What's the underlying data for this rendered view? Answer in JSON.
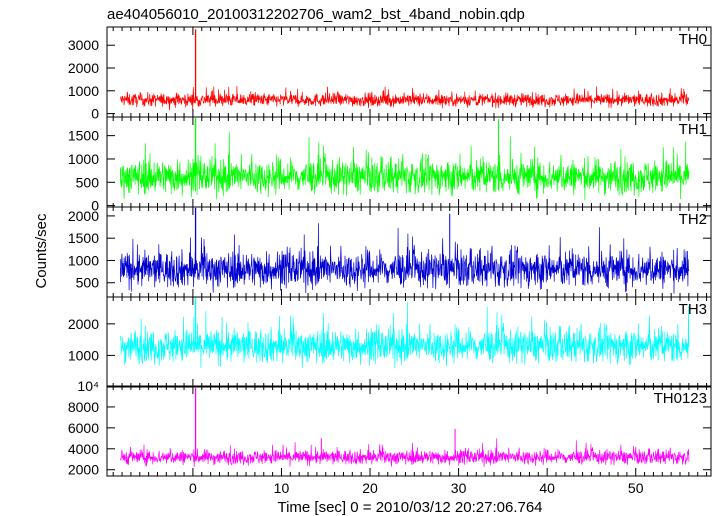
{
  "title": "ae404056010_20100312202706_wam2_bst_4band_nobin.qdp",
  "ylabel": "Counts/sec",
  "xlabel": "Time [sec] 0 = 2010/03/12 20:27:06.764",
  "chart_data": {
    "type": "line",
    "title": "ae404056010_20100312202706_wam2_bst_4band_nobin.qdp",
    "xlabel": "Time [sec] 0 = 2010/03/12 20:27:06.764",
    "ylabel": "Counts/sec",
    "xlim": [
      -9.7,
      58.5
    ],
    "x_data_range": [
      -8.2,
      56.0
    ],
    "xticks": [
      0,
      10,
      20,
      30,
      40,
      50
    ],
    "grid": false,
    "panels": [
      {
        "name": "TH0",
        "color": "#ff0000",
        "ylim": [
          -150,
          3800
        ],
        "yticks": [
          0,
          1000,
          2000,
          3000
        ],
        "ytick_labels": [
          "0",
          "1000",
          "2000",
          "3000"
        ],
        "baseline": 600,
        "noise": 260,
        "spike_time": 0.3,
        "spike_value": 3700,
        "extra_spikes": []
      },
      {
        "name": "TH1",
        "color": "#00ff00",
        "ylim": [
          -30,
          1900
        ],
        "yticks": [
          0,
          500,
          1000,
          1500
        ],
        "ytick_labels": [
          "0",
          "500",
          "1000",
          "1500"
        ],
        "baseline": 620,
        "noise": 330,
        "spike_time": 0.3,
        "spike_value": 1880,
        "extra_spikes": [
          [
            34.5,
            1850
          ]
        ]
      },
      {
        "name": "TH2",
        "color": "#0000d0",
        "ylim": [
          180,
          2200
        ],
        "yticks": [
          500,
          1000,
          1500,
          2000
        ],
        "ytick_labels": [
          "500",
          "1000",
          "1500",
          "2000"
        ],
        "baseline": 800,
        "noise": 360,
        "spike_time": 0.3,
        "spike_value": 2180,
        "extra_spikes": [
          [
            29.0,
            2050
          ]
        ]
      },
      {
        "name": "TH3",
        "color": "#00ffff",
        "ylim": [
          0,
          2850
        ],
        "yticks": [
          1000,
          2000
        ],
        "ytick_labels": [
          "1000",
          "2000"
        ],
        "baseline": 1300,
        "noise": 480,
        "spike_time": 0.3,
        "spike_value": 2850,
        "extra_spikes": []
      },
      {
        "name": "TH0123",
        "color": "#ff00ff",
        "ylim": [
          1400,
          10000
        ],
        "yticks": [
          2000,
          4000,
          6000,
          8000
        ],
        "ytick_labels": [
          "2000",
          "4000",
          "6000",
          "8000"
        ],
        "top_label": "10⁴",
        "baseline": 3200,
        "noise": 620,
        "spike_time": 0.3,
        "spike_value": 9800,
        "extra_spikes": [
          [
            29.6,
            5900
          ],
          [
            14.5,
            5000
          ]
        ]
      }
    ]
  }
}
